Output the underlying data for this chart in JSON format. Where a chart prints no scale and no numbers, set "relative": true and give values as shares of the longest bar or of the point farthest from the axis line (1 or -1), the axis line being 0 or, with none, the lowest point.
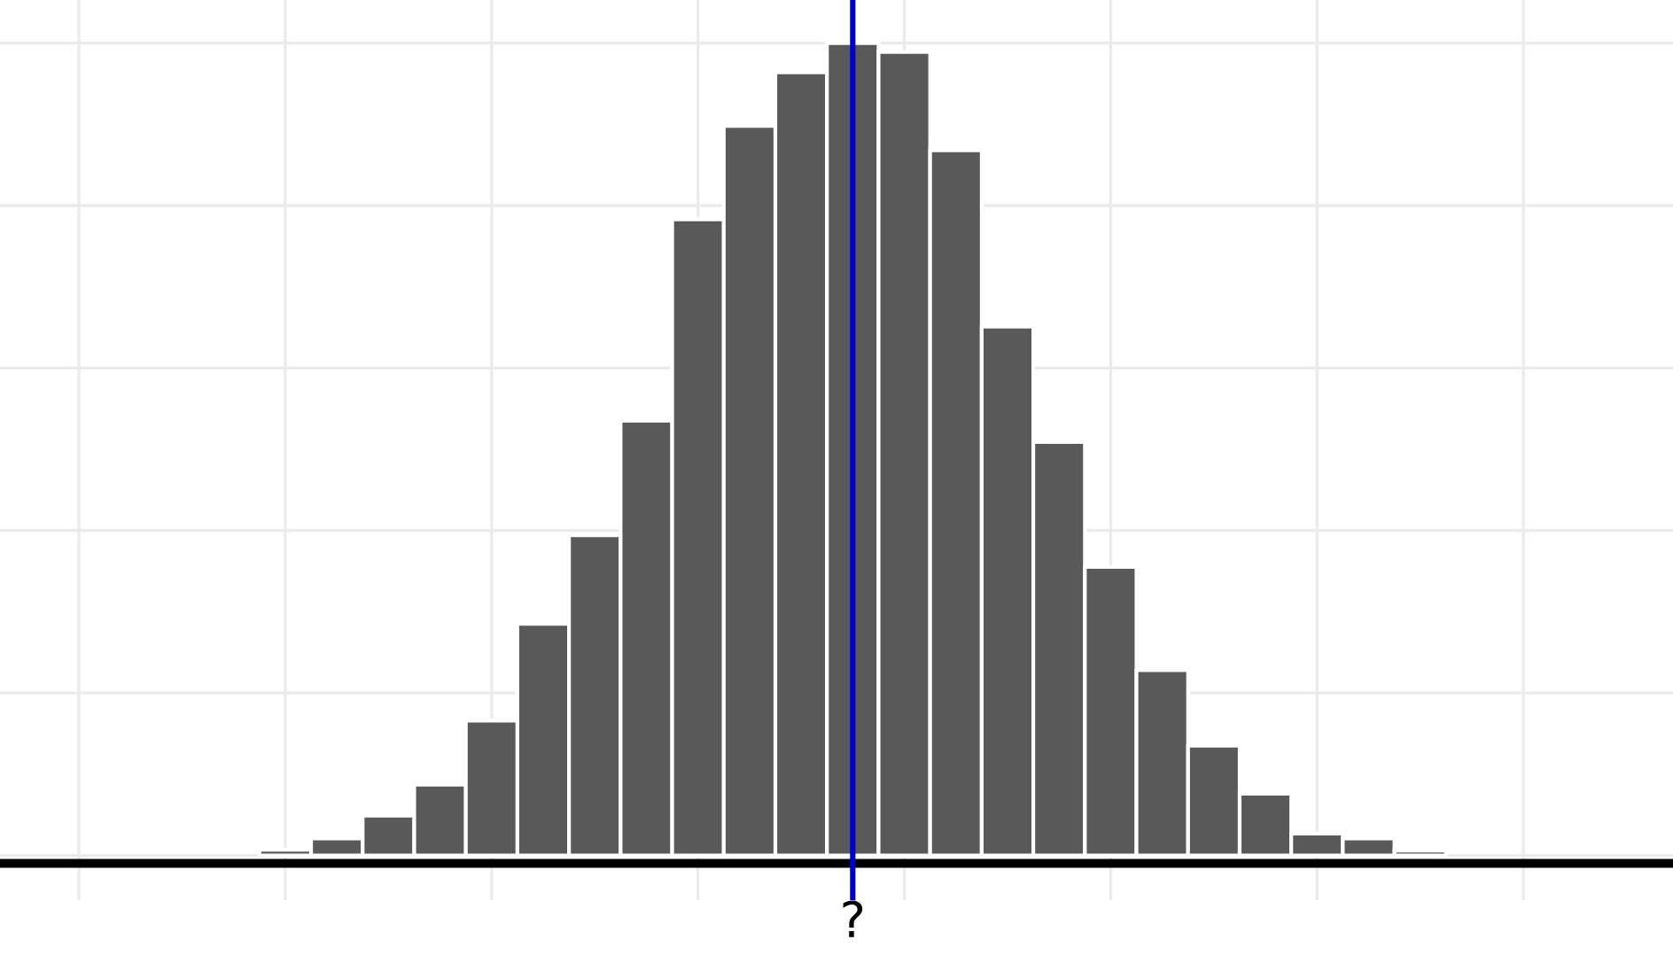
{
  "chart_data": {
    "type": "bar",
    "relative": true,
    "categories": [
      null,
      null,
      null,
      null,
      null,
      null,
      null,
      null,
      null,
      null,
      null,
      "?",
      null,
      null,
      null,
      null,
      null,
      null,
      null,
      null,
      null,
      null,
      null
    ],
    "values": [
      0.007,
      0.021,
      0.049,
      0.087,
      0.166,
      0.285,
      0.394,
      0.535,
      0.783,
      0.898,
      0.964,
      1,
      0.989,
      0.868,
      0.651,
      0.509,
      0.355,
      0.228,
      0.135,
      0.076,
      0.027,
      0.021,
      0.006
    ],
    "color": "#595959",
    "ref_lines": [
      {
        "axis": "x",
        "value": "?",
        "color": "#0000cc"
      }
    ],
    "grid": true
  }
}
